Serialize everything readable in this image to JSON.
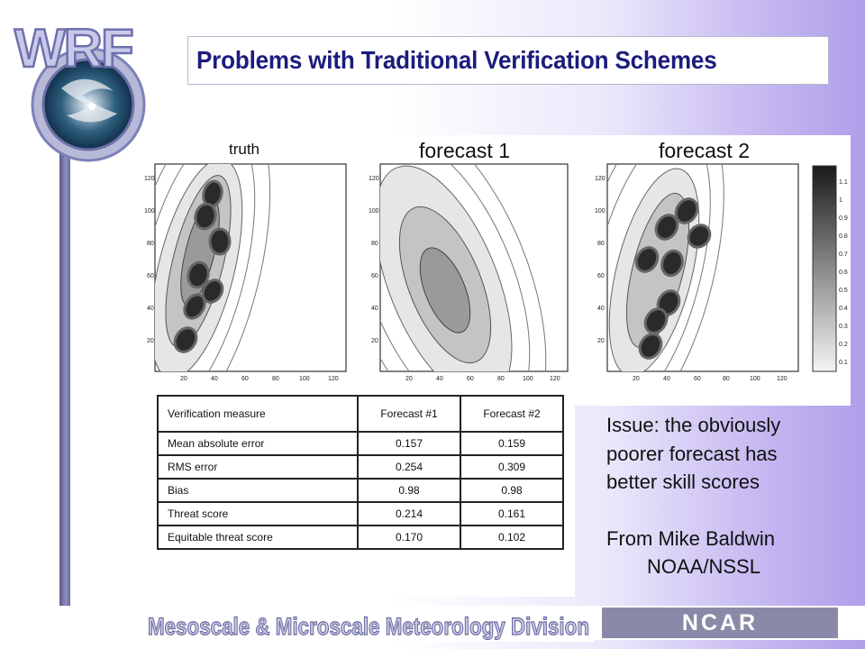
{
  "logo": {
    "text": "WRF"
  },
  "title": "Problems with Traditional Verification Schemes",
  "plots": [
    {
      "label": "truth"
    },
    {
      "label": "forecast 1"
    },
    {
      "label": "forecast 2"
    }
  ],
  "axes": {
    "yticks": [
      "120",
      "100",
      "80",
      "60",
      "40",
      "20"
    ],
    "xticks": [
      "20",
      "40",
      "60",
      "80",
      "100",
      "120"
    ]
  },
  "colorbar": {
    "ticks": [
      "1.1",
      "1",
      "0.9",
      "0.8",
      "0.7",
      "0.6",
      "0.5",
      "0.4",
      "0.3",
      "0.2",
      "0.1"
    ]
  },
  "table": {
    "headers": [
      "Verification measure",
      "Forecast #1",
      "Forecast #2"
    ],
    "rows": [
      {
        "measure": "Mean absolute error",
        "f1": "0.157",
        "f2": "0.159"
      },
      {
        "measure": "RMS error",
        "f1": "0.254",
        "f2": "0.309"
      },
      {
        "measure": "Bias",
        "f1": "0.98",
        "f2": "0.98"
      },
      {
        "measure": "Threat score",
        "f1": "0.214",
        "f2": "0.161"
      },
      {
        "measure": "Equitable threat score",
        "f1": "0.170",
        "f2": "0.102"
      }
    ]
  },
  "issue": {
    "lines": [
      "Issue: the obviously",
      "poorer forecast has",
      "better skill scores"
    ],
    "credit1": "From Mike Baldwin",
    "credit2": "NOAA/NSSL"
  },
  "footer": {
    "division": "Mesoscale & Microscale Meteorology Division",
    "ncar": "NCAR"
  }
}
